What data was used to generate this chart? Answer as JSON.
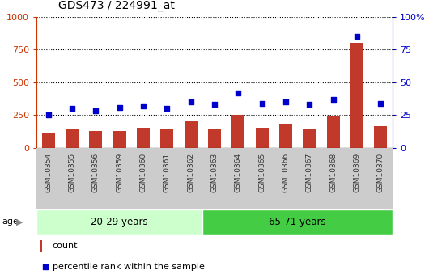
{
  "title": "GDS473 / 224991_at",
  "samples": [
    "GSM10354",
    "GSM10355",
    "GSM10356",
    "GSM10359",
    "GSM10360",
    "GSM10361",
    "GSM10362",
    "GSM10363",
    "GSM10364",
    "GSM10365",
    "GSM10366",
    "GSM10367",
    "GSM10368",
    "GSM10369",
    "GSM10370"
  ],
  "counts": [
    110,
    145,
    130,
    130,
    155,
    140,
    205,
    145,
    255,
    155,
    185,
    150,
    240,
    800,
    165
  ],
  "percentiles": [
    25,
    30,
    28,
    31,
    32,
    30,
    35,
    33,
    42,
    34,
    35,
    33,
    37,
    85,
    34
  ],
  "group1_label": "20-29 years",
  "group2_label": "65-71 years",
  "group1_count": 7,
  "group2_count": 8,
  "bar_color": "#c0392b",
  "dot_color": "#0000cc",
  "group1_bg": "#ccffcc",
  "group2_bg": "#44cc44",
  "age_label": "age",
  "ylim_left": [
    0,
    1000
  ],
  "ylim_right": [
    0,
    100
  ],
  "yticks_left": [
    0,
    250,
    500,
    750,
    1000
  ],
  "yticks_right": [
    0,
    25,
    50,
    75,
    100
  ],
  "legend1": "count",
  "legend2": "percentile rank within the sample",
  "xticklabel_color": "#333333",
  "left_axis_color": "#cc3300",
  "right_axis_color": "#0000cc",
  "tick_bg_color": "#cccccc"
}
